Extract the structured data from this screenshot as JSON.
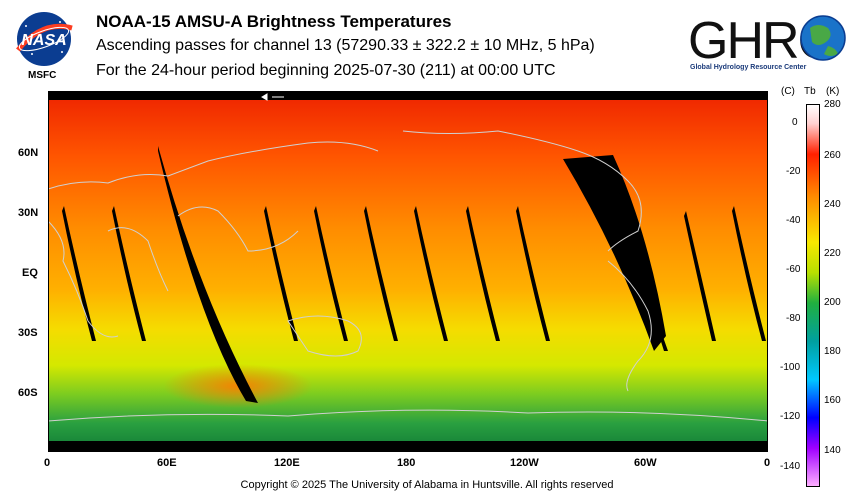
{
  "header": {
    "title": "NOAA-15 AMSU-A Brightness Temperatures",
    "subtitle1": "Ascending passes for channel 13 (57290.33 ± 322.2 ± 10 MHz, 5 hPa)",
    "subtitle2": "For the 24-hour period beginning 2025-07-30 (211) at 00:00 UTC"
  },
  "logos": {
    "nasa_text": "NASA",
    "msfc_text": "MSFC",
    "ghrc_text": "GHRC",
    "ghrc_subtitle": "Global Hydrology Resource Center"
  },
  "map": {
    "lat_labels": [
      "60N",
      "30N",
      "EQ",
      "30S",
      "60S"
    ],
    "lon_labels": [
      "0",
      "60E",
      "120E",
      "180",
      "120W",
      "60W",
      "0"
    ],
    "colors": {
      "ocean_cold": "#1a8a3a",
      "mid": "#f2e000",
      "warm": "#ff6a00",
      "hot": "#ee2200",
      "gap": "#000000",
      "coast": "#c8c8c8"
    }
  },
  "colorbar": {
    "header_c": "(C)",
    "header_tb": "Tb",
    "header_k": "(K)",
    "celsius_labels": [
      "0",
      "-20",
      "-40",
      "-60",
      "-80",
      "-100",
      "-120",
      "-140"
    ],
    "kelvin_labels": [
      "280",
      "260",
      "240",
      "220",
      "200",
      "180",
      "160",
      "140"
    ],
    "kelvin_min": 130,
    "kelvin_max": 280
  },
  "footer": {
    "copyright": "Copyright © 2025 The University of Alabama in Huntsville.  All rights reserved"
  }
}
